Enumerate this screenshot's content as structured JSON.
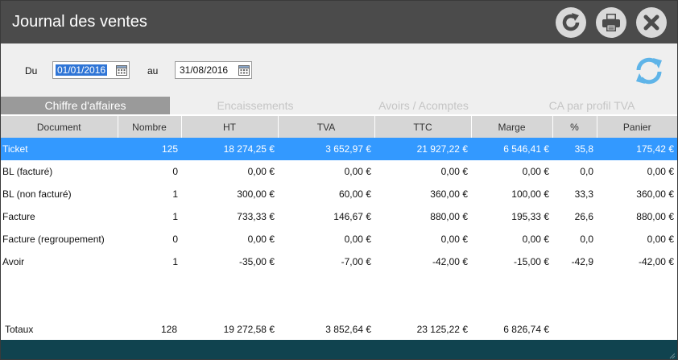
{
  "window": {
    "title": "Journal des ventes"
  },
  "filters": {
    "from_label": "Du",
    "from_value": "01/01/2016",
    "to_label": "au",
    "to_value": "31/08/2016"
  },
  "tabs": [
    {
      "label": "Chiffre d'affaires",
      "active": true
    },
    {
      "label": "Encaissements",
      "active": false
    },
    {
      "label": "Avoirs / Acomptes",
      "active": false
    },
    {
      "label": "CA par profil TVA",
      "active": false
    }
  ],
  "table": {
    "columns": [
      "Document",
      "Nombre",
      "HT",
      "TVA",
      "TTC",
      "Marge",
      "%",
      "Panier"
    ],
    "rows": [
      [
        "Ticket",
        "125",
        "18 274,25 €",
        "3 652,97 €",
        "21 927,22 €",
        "6 546,41 €",
        "35,8",
        "175,42 €"
      ],
      [
        "BL (facturé)",
        "0",
        "0,00 €",
        "0,00 €",
        "0,00 €",
        "0,00 €",
        "0,0",
        "0,00 €"
      ],
      [
        "BL (non facturé)",
        "1",
        "300,00 €",
        "60,00 €",
        "360,00 €",
        "100,00 €",
        "33,3",
        "360,00 €"
      ],
      [
        "Facture",
        "1",
        "733,33 €",
        "146,67 €",
        "880,00 €",
        "195,33 €",
        "26,6",
        "880,00 €"
      ],
      [
        "Facture (regroupement)",
        "0",
        "0,00 €",
        "0,00 €",
        "0,00 €",
        "0,00 €",
        "0,0",
        "0,00 €"
      ],
      [
        "Avoir",
        "1",
        "-35,00 €",
        "-7,00 €",
        "-42,00 €",
        "-15,00 €",
        "-42,9",
        "-42,00 €"
      ]
    ]
  },
  "totals": {
    "label": "Totaux",
    "nombre": "128",
    "ht": "19 272,58 €",
    "tva": "3 852,64 €",
    "ttc": "23 125,22 €",
    "marge": "6 826,74 €"
  },
  "icons": {
    "refresh": "refresh-icon",
    "print": "print-icon",
    "close": "close-icon",
    "calendar": "calendar-icon",
    "sync": "sync-icon"
  },
  "colors": {
    "titlebar": "#4b4b4b",
    "selected_row": "#3399ff",
    "active_tab": "#9a9a9a",
    "footer": "#10434f",
    "sync_icon": "#5fb4e8"
  }
}
